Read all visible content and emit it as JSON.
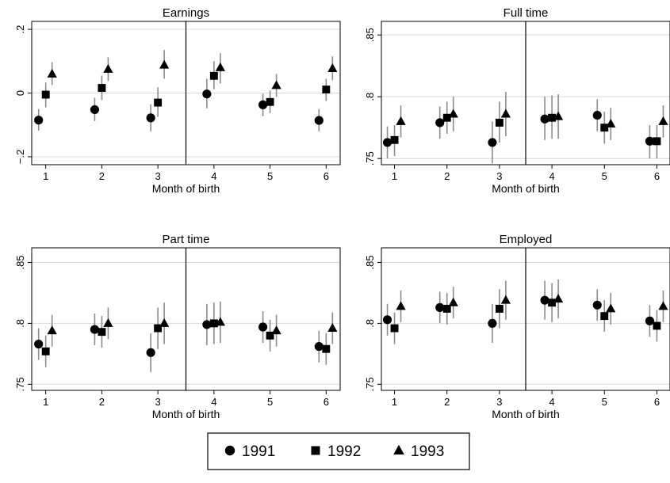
{
  "chart_data": [
    {
      "type": "scatter",
      "title": "Earnings",
      "xlabel": "Month of birth",
      "ylabel": "",
      "xlim": [
        0.75,
        6.25
      ],
      "ylim": [
        -0.225,
        0.225
      ],
      "xticks": [
        "1",
        "2",
        "3",
        "4",
        "5",
        "6"
      ],
      "yticks": [
        "−.2",
        "0",
        ".2"
      ],
      "ytick_values": [
        -0.2,
        0,
        0.2
      ],
      "cutoff_x": 3.5,
      "series": [
        {
          "name": "1991",
          "marker": "circle",
          "x": [
            1,
            2,
            3,
            4,
            5,
            6
          ],
          "y": [
            -0.085,
            -0.052,
            -0.078,
            -0.003,
            -0.037,
            -0.086
          ],
          "lo": [
            -0.118,
            -0.088,
            -0.12,
            -0.048,
            -0.073,
            -0.12
          ],
          "hi": [
            -0.05,
            -0.015,
            -0.035,
            0.045,
            -0.002,
            -0.05
          ]
        },
        {
          "name": "1992",
          "marker": "square",
          "x": [
            1,
            2,
            3,
            4,
            5,
            6
          ],
          "y": [
            -0.005,
            0.016,
            -0.03,
            0.054,
            -0.028,
            0.011
          ],
          "lo": [
            -0.045,
            -0.022,
            -0.075,
            0.012,
            -0.063,
            -0.025
          ],
          "hi": [
            0.033,
            0.055,
            0.018,
            0.1,
            0.008,
            0.045
          ]
        },
        {
          "name": "1993",
          "marker": "triangle",
          "x": [
            1,
            2,
            3,
            4,
            5,
            6
          ],
          "y": [
            0.06,
            0.075,
            0.088,
            0.08,
            0.024,
            0.077
          ],
          "lo": [
            0.025,
            0.038,
            0.045,
            0.03,
            -0.012,
            0.04
          ],
          "hi": [
            0.097,
            0.112,
            0.135,
            0.125,
            0.06,
            0.115
          ]
        }
      ]
    },
    {
      "type": "scatter",
      "title": "Full time",
      "xlabel": "Month of birth",
      "ylabel": "",
      "xlim": [
        0.75,
        6.25
      ],
      "ylim": [
        0.745,
        0.861
      ],
      "xticks": [
        "1",
        "2",
        "3",
        "4",
        "5",
        "6"
      ],
      "yticks": [
        ".75",
        ".8",
        ".85"
      ],
      "ytick_values": [
        0.75,
        0.8,
        0.85
      ],
      "cutoff_x": 3.5,
      "series": [
        {
          "name": "1991",
          "marker": "circle",
          "x": [
            1,
            2,
            3,
            4,
            5,
            6
          ],
          "y": [
            0.763,
            0.779,
            0.763,
            0.782,
            0.785,
            0.764
          ],
          "lo": [
            0.75,
            0.766,
            0.746,
            0.765,
            0.772,
            0.75
          ],
          "hi": [
            0.776,
            0.792,
            0.78,
            0.8,
            0.798,
            0.777
          ]
        },
        {
          "name": "1992",
          "marker": "square",
          "x": [
            1,
            2,
            3,
            4,
            5,
            6
          ],
          "y": [
            0.765,
            0.783,
            0.779,
            0.783,
            0.775,
            0.764
          ],
          "lo": [
            0.752,
            0.77,
            0.763,
            0.766,
            0.762,
            0.75
          ],
          "hi": [
            0.777,
            0.796,
            0.796,
            0.801,
            0.788,
            0.777
          ]
        },
        {
          "name": "1993",
          "marker": "triangle",
          "x": [
            1,
            2,
            3,
            4,
            5,
            6
          ],
          "y": [
            0.78,
            0.786,
            0.786,
            0.784,
            0.778,
            0.78
          ],
          "lo": [
            0.767,
            0.772,
            0.768,
            0.766,
            0.765,
            0.767
          ],
          "hi": [
            0.793,
            0.8,
            0.804,
            0.802,
            0.791,
            0.793
          ]
        }
      ]
    },
    {
      "type": "scatter",
      "title": "Part time",
      "xlabel": "Month of birth",
      "ylabel": "",
      "xlim": [
        0.75,
        6.25
      ],
      "ylim": [
        0.745,
        0.862
      ],
      "xticks": [
        "1",
        "2",
        "3",
        "4",
        "5",
        "6"
      ],
      "yticks": [
        ".75",
        ".8",
        ".85"
      ],
      "ytick_values": [
        0.75,
        0.8,
        0.85
      ],
      "cutoff_x": 3.5,
      "series": [
        {
          "name": "1991",
          "marker": "circle",
          "x": [
            1,
            2,
            3,
            4,
            5,
            6
          ],
          "y": [
            0.783,
            0.795,
            0.776,
            0.799,
            0.797,
            0.781
          ],
          "lo": [
            0.77,
            0.782,
            0.76,
            0.782,
            0.784,
            0.768
          ],
          "hi": [
            0.796,
            0.808,
            0.792,
            0.816,
            0.81,
            0.794
          ]
        },
        {
          "name": "1992",
          "marker": "square",
          "x": [
            1,
            2,
            3,
            4,
            5,
            6
          ],
          "y": [
            0.777,
            0.793,
            0.796,
            0.8,
            0.79,
            0.779
          ],
          "lo": [
            0.764,
            0.78,
            0.779,
            0.783,
            0.777,
            0.766
          ],
          "hi": [
            0.79,
            0.806,
            0.813,
            0.817,
            0.803,
            0.792
          ]
        },
        {
          "name": "1993",
          "marker": "triangle",
          "x": [
            1,
            2,
            3,
            4,
            5,
            6
          ],
          "y": [
            0.794,
            0.8,
            0.8,
            0.801,
            0.794,
            0.796
          ],
          "lo": [
            0.781,
            0.787,
            0.783,
            0.784,
            0.781,
            0.783
          ],
          "hi": [
            0.807,
            0.813,
            0.817,
            0.818,
            0.807,
            0.809
          ]
        }
      ]
    },
    {
      "type": "scatter",
      "title": "Employed",
      "xlabel": "Month of birth",
      "ylabel": "",
      "xlim": [
        0.75,
        6.25
      ],
      "ylim": [
        0.745,
        0.862
      ],
      "xticks": [
        "1",
        "2",
        "3",
        "4",
        "5",
        "6"
      ],
      "yticks": [
        ".75",
        ".8",
        ".85"
      ],
      "ytick_values": [
        0.75,
        0.8,
        0.85
      ],
      "cutoff_x": 3.5,
      "series": [
        {
          "name": "1991",
          "marker": "circle",
          "x": [
            1,
            2,
            3,
            4,
            5,
            6
          ],
          "y": [
            0.803,
            0.813,
            0.8,
            0.819,
            0.815,
            0.802
          ],
          "lo": [
            0.79,
            0.8,
            0.784,
            0.803,
            0.802,
            0.789
          ],
          "hi": [
            0.816,
            0.826,
            0.816,
            0.835,
            0.828,
            0.815
          ]
        },
        {
          "name": "1992",
          "marker": "square",
          "x": [
            1,
            2,
            3,
            4,
            5,
            6
          ],
          "y": [
            0.796,
            0.812,
            0.812,
            0.817,
            0.806,
            0.798
          ],
          "lo": [
            0.783,
            0.799,
            0.796,
            0.801,
            0.793,
            0.785
          ],
          "hi": [
            0.809,
            0.825,
            0.828,
            0.833,
            0.819,
            0.811
          ]
        },
        {
          "name": "1993",
          "marker": "triangle",
          "x": [
            1,
            2,
            3,
            4,
            5,
            6
          ],
          "y": [
            0.814,
            0.817,
            0.819,
            0.82,
            0.812,
            0.814
          ],
          "lo": [
            0.801,
            0.804,
            0.803,
            0.804,
            0.799,
            0.801
          ],
          "hi": [
            0.827,
            0.83,
            0.835,
            0.836,
            0.825,
            0.827
          ]
        }
      ]
    }
  ],
  "legend": {
    "placement": "bottom-center",
    "entries": [
      {
        "label": "1991",
        "marker": "circle"
      },
      {
        "label": "1992",
        "marker": "square"
      },
      {
        "label": "1993",
        "marker": "triangle"
      }
    ]
  },
  "colors": {
    "marker": "#000000",
    "errorbar": "#8c8c8c",
    "gridline": "#d9d9d9",
    "axis": "#000000"
  }
}
